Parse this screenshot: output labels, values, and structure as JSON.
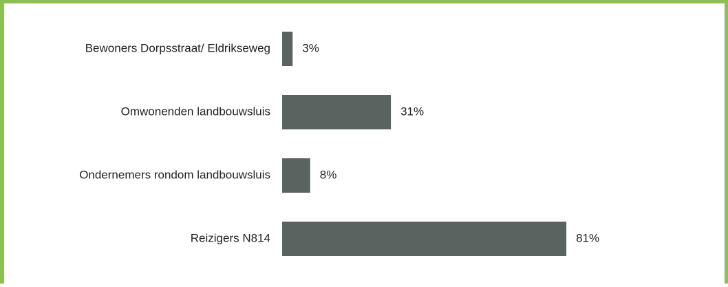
{
  "chart_data": {
    "type": "bar",
    "orientation": "horizontal",
    "categories": [
      "Bewoners Dorpsstraat/ Eldrikseweg",
      "Omwonenden landbouwsluis",
      "Ondernemers rondom landbouwsluis",
      "Reizigers N814"
    ],
    "values": [
      3,
      31,
      8,
      81
    ],
    "value_labels": [
      "3%",
      "31%",
      "8%",
      "81%"
    ],
    "color": "#5b6361"
  }
}
